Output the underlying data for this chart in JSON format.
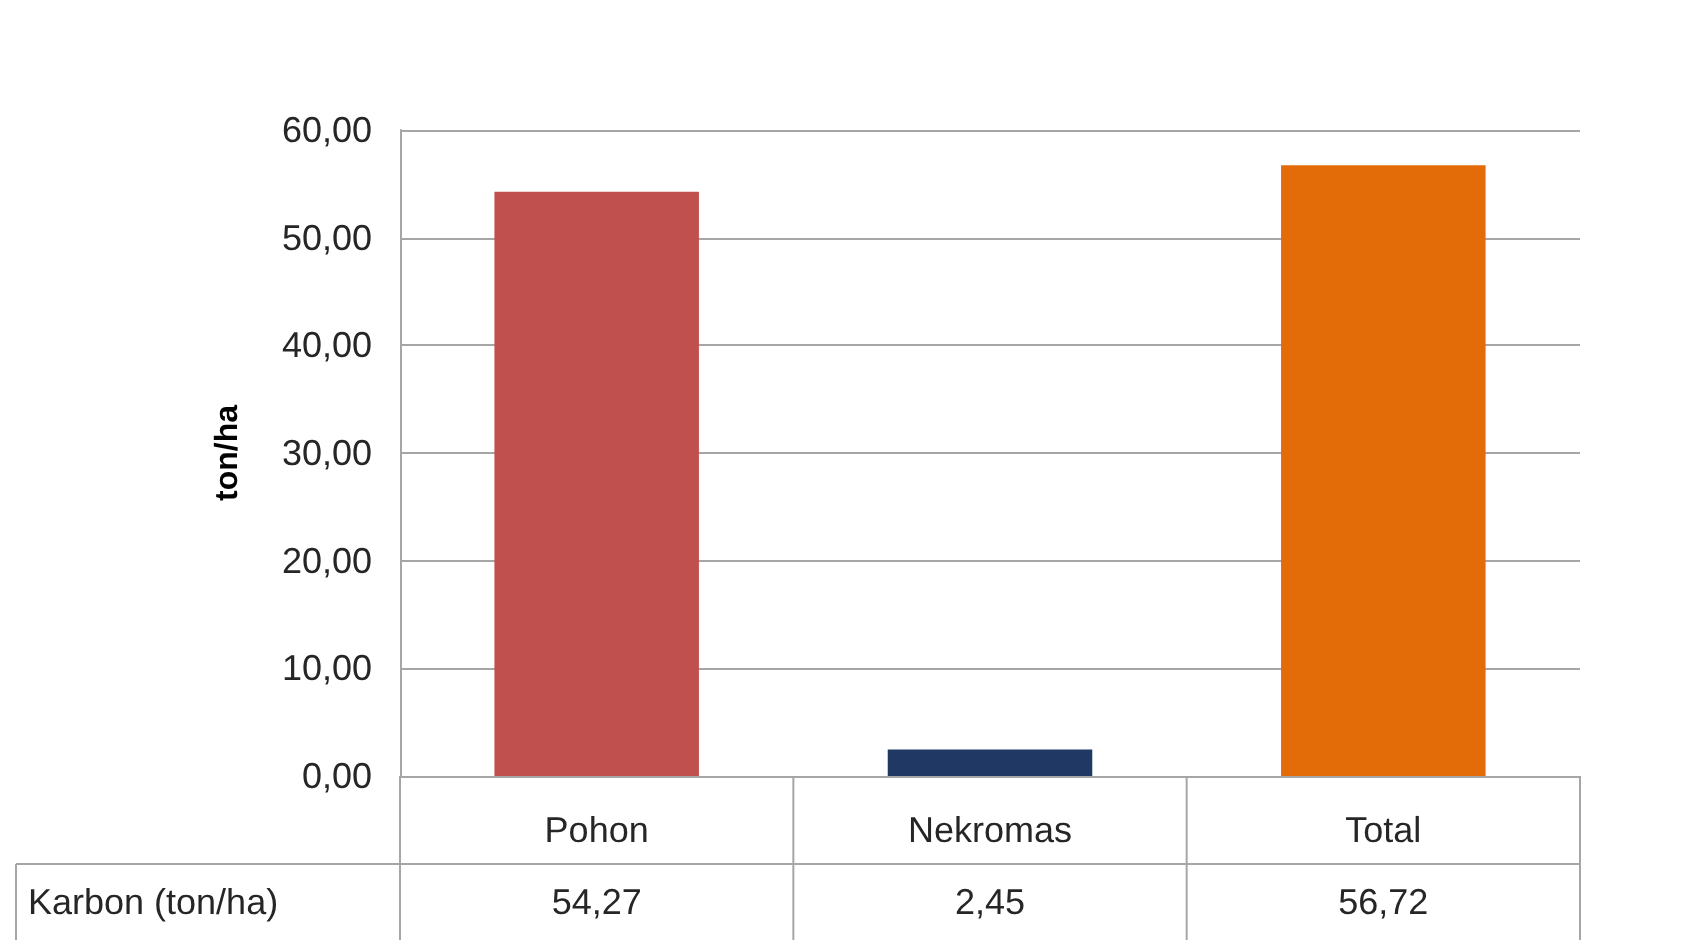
{
  "chart_data": {
    "type": "bar",
    "ylabel": "ton/ha",
    "categories": [
      "Pohon",
      "Nekromas",
      "Total"
    ],
    "series": [
      {
        "name": "Karbon (ton/ha)",
        "colors": [
          "#c0504d",
          "#1f3864",
          "#e36c09"
        ],
        "values": [
          54.27,
          2.45,
          56.72
        ],
        "value_labels": [
          "54,27",
          "2,45",
          "56,72"
        ]
      }
    ],
    "ylim": [
      0,
      60
    ],
    "yticks": [
      {
        "value": 0,
        "label": "0,00"
      },
      {
        "value": 10,
        "label": "10,00"
      },
      {
        "value": 20,
        "label": "20,00"
      },
      {
        "value": 30,
        "label": "30,00"
      },
      {
        "value": 40,
        "label": "40,00"
      },
      {
        "value": 50,
        "label": "50,00"
      },
      {
        "value": 60,
        "label": "60,00"
      }
    ],
    "grid": "y",
    "legend": false
  }
}
